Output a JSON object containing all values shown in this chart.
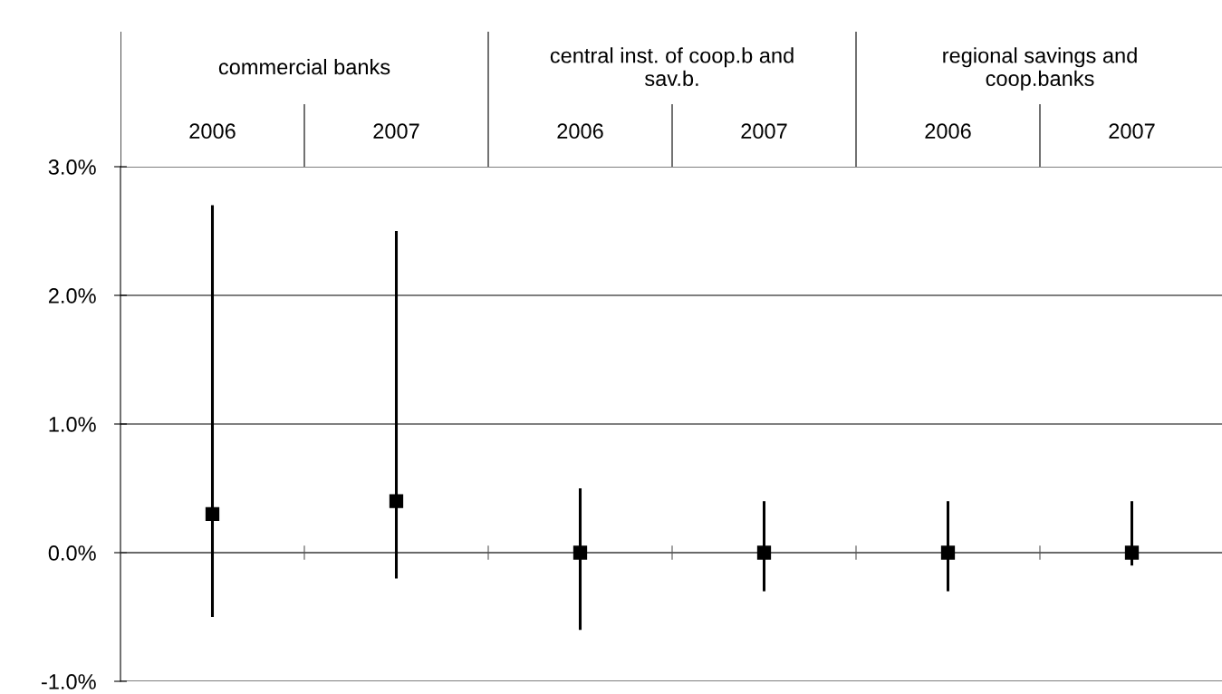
{
  "chart_data": {
    "type": "scatter",
    "marker": "square",
    "grid": "y",
    "categories": [
      "2006",
      "2007",
      "2006",
      "2007",
      "2006",
      "2007"
    ],
    "annotations": [
      "commercial banks",
      "central inst. of coop.b and\nsav.b.",
      "regional savings and\ncoop.banks"
    ],
    "series": [
      {
        "color": "#000000",
        "values": [
          0.3,
          0.4,
          0,
          0,
          0,
          0
        ],
        "errors": [
          [
            -0.5,
            2.7
          ],
          [
            -0.2,
            2.5
          ],
          [
            -0.6,
            0.5
          ],
          [
            -0.3,
            0.4
          ],
          [
            -0.3,
            0.4
          ],
          [
            -0.1,
            0.4
          ]
        ]
      }
    ],
    "ylim": [
      -1,
      3
    ],
    "yticks": [
      {
        "value": -1,
        "label": "-1.0%"
      },
      {
        "value": 0,
        "label": "0.0%"
      },
      {
        "value": 1,
        "label": "1.0%"
      },
      {
        "value": 2,
        "label": "2.0%"
      },
      {
        "value": 3,
        "label": "3.0%"
      }
    ],
    "tick_labels": "y"
  }
}
